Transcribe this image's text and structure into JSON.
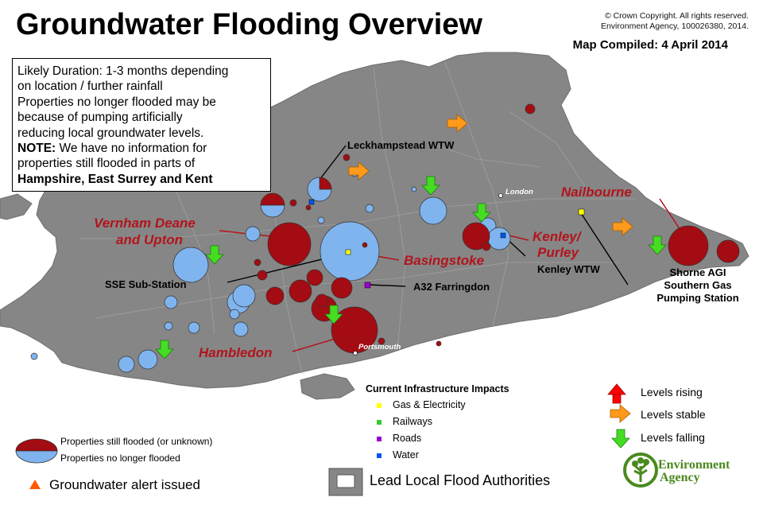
{
  "title": "Groundwater Flooding Overview",
  "copyright": [
    "© Crown Copyright. All rights reserved.",
    "Environment Agency, 100026380, 2014."
  ],
  "compiled": "Map Compiled: 4 April 2014",
  "infobox": {
    "line1": "Likely Duration: 1-3 months depending",
    "line2": "on location / further rainfall",
    "line3": "Properties no longer flooded may be",
    "line4": "because of pumping artificially",
    "line5": "reducing local groundwater levels.",
    "note_label": "NOTE:",
    "line6": " We have no information for",
    "line7": "properties still flooded in parts of",
    "line8": "Hampshire, East Surrey and Kent"
  },
  "labels": {
    "leckhampstead": "Leckhampstead WTW",
    "london": "London",
    "nailbourne": "Nailbourne",
    "vernham1": "Vernham Deane",
    "vernham2": "and Upton",
    "basingstoke": "Basingstoke",
    "kenley1": "Kenley/",
    "kenley2": "Purley",
    "kenley_wtw": "Kenley WTW",
    "shorne1": "Shorne AGI",
    "shorne2": "Southern Gas",
    "shorne3": "Pumping Station",
    "sse": "SSE Sub-Station",
    "a32": "A32 Farringdon",
    "hambledon": "Hambledon",
    "portsmouth": "Portsmouth"
  },
  "infrastructure": {
    "title": "Current Infrastructure Impacts",
    "items": [
      {
        "label": "Gas & Electricity",
        "color": "#ffff00"
      },
      {
        "label": "Railways",
        "color": "#33cc33"
      },
      {
        "label": "Roads",
        "color": "#9900cc"
      },
      {
        "label": "Water",
        "color": "#0055ee"
      }
    ]
  },
  "levels": {
    "rising": "Levels rising",
    "stable": "Levels stable",
    "falling": "Levels falling",
    "colors": {
      "rising": "#ff0000",
      "stable": "#ff9a1a",
      "falling": "#44dd22"
    }
  },
  "legend": {
    "flooded": "Properties still flooded (or unknown)",
    "not_flooded": "Properties no longer flooded",
    "alert": "Groundwater alert issued",
    "llfa": "Lead Local Flood Authorities",
    "colors": {
      "flooded": "#a30c12",
      "not_flooded": "#80b4ee",
      "land": "#868686",
      "sea": "#ffffff"
    }
  },
  "logo": {
    "line1": "Environment",
    "line2": "Agency"
  }
}
